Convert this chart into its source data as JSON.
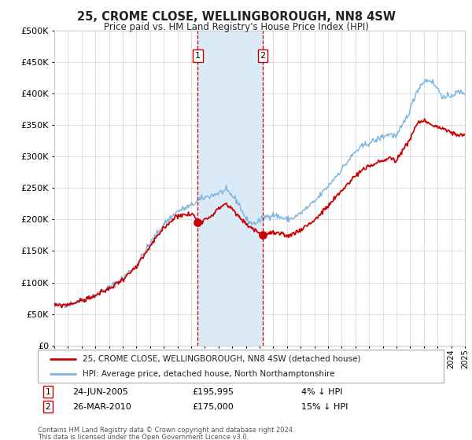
{
  "title": "25, CROME CLOSE, WELLINGBOROUGH, NN8 4SW",
  "subtitle": "Price paid vs. HM Land Registry's House Price Index (HPI)",
  "legend_line1": "25, CROME CLOSE, WELLINGBOROUGH, NN8 4SW (detached house)",
  "legend_line2": "HPI: Average price, detached house, North Northamptonshire",
  "footnote1": "Contains HM Land Registry data © Crown copyright and database right 2024.",
  "footnote2": "This data is licensed under the Open Government Licence v3.0.",
  "sale1_date": "24-JUN-2005",
  "sale1_price": "£195,995",
  "sale1_hpi": "4% ↓ HPI",
  "sale1_year": 2005.48,
  "sale1_value": 195995,
  "sale2_date": "26-MAR-2010",
  "sale2_price": "£175,000",
  "sale2_hpi": "15% ↓ HPI",
  "sale2_year": 2010.23,
  "sale2_value": 175000,
  "hpi_color": "#7ab3e0",
  "price_color": "#cc0000",
  "sale_dot_color": "#cc0000",
  "shaded_color": "#daeaf7",
  "vline_color": "#cc0000",
  "background_color": "#ffffff",
  "plot_background": "#ffffff",
  "grid_color": "#e0e0e0",
  "ylim_min": 0,
  "ylim_max": 500000,
  "xlim_min": 1995,
  "xlim_max": 2025
}
